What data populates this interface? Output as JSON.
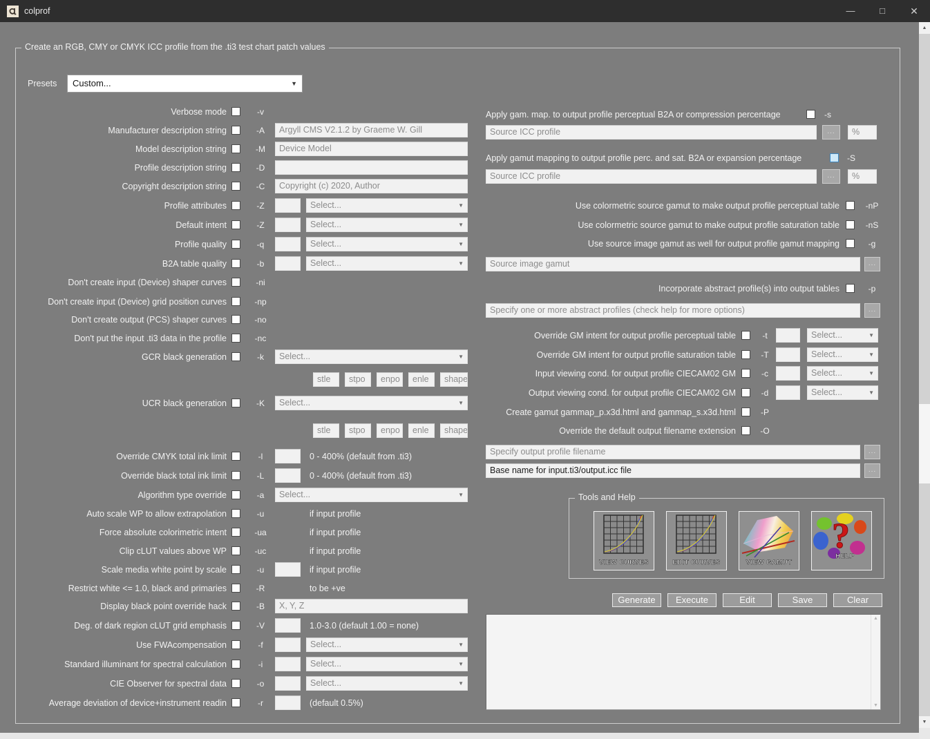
{
  "window": {
    "title": "colprof"
  },
  "icons": {
    "minimize": "—",
    "maximize": "□",
    "close": "✕",
    "dropdown": "▼",
    "browse": "...",
    "scroll_up": "▲",
    "scroll_down": "▼"
  },
  "group_title": "Create an RGB, CMY or CMYK ICC profile from the .ti3 test chart patch values",
  "presets": {
    "label": "Presets",
    "value": "Custom..."
  },
  "select_placeholder": "Select...",
  "left_rows": [
    {
      "label": "Verbose mode",
      "flag": "-v",
      "type": "plain"
    },
    {
      "label": "Manufacturer description string",
      "flag": "-A",
      "type": "text",
      "value": "Argyll CMS V2.1.2 by Graeme W. Gill"
    },
    {
      "label": "Model description string",
      "flag": "-M",
      "type": "text",
      "value": "Device Model"
    },
    {
      "label": "Profile description string",
      "flag": "-D",
      "type": "text",
      "value": ""
    },
    {
      "label": "Copyright description string",
      "flag": "-C",
      "type": "text",
      "value": "Copyright (c) 2020, Author"
    },
    {
      "label": "Profile attributes",
      "flag": "-Z",
      "type": "small_select"
    },
    {
      "label": "Default intent",
      "flag": "-Z",
      "type": "small_select"
    },
    {
      "label": "Profile quality",
      "flag": "-q",
      "type": "small_select"
    },
    {
      "label": "B2A table quality",
      "flag": "-b",
      "type": "small_select"
    },
    {
      "label": "Don't create input (Device) shaper curves",
      "flag": "-ni",
      "type": "plain"
    },
    {
      "label": "Don't create input (Device) grid position curves",
      "flag": "-np",
      "type": "plain"
    },
    {
      "label": "Don't create output (PCS) shaper curves",
      "flag": "-no",
      "type": "plain"
    },
    {
      "label": "Don't put the input .ti3 data in the profile",
      "flag": "-nc",
      "type": "plain"
    },
    {
      "label": "GCR black generation",
      "flag": "-k",
      "type": "select"
    },
    {
      "type": "subfields",
      "fields": [
        "stle",
        "stpo",
        "enpo",
        "enle",
        "shape"
      ]
    },
    {
      "label": "UCR black generation",
      "flag": "-K",
      "type": "select"
    },
    {
      "type": "subfields",
      "fields": [
        "stle",
        "stpo",
        "enpo",
        "enle",
        "shape"
      ]
    },
    {
      "label": "Override CMYK total ink limit",
      "flag": "-l",
      "type": "small_note",
      "note": "0 - 400% (default from .ti3)"
    },
    {
      "label": "Override black total ink limit",
      "flag": "-L",
      "type": "small_note",
      "note": "0 - 400% (default from .ti3)"
    },
    {
      "label": "Algorithm type override",
      "flag": "-a",
      "type": "select"
    },
    {
      "label": "Auto scale WP to allow extrapolation",
      "flag": "-u",
      "type": "note",
      "note": "if input profile"
    },
    {
      "label": "Force absolute colorimetric intent",
      "flag": "-ua",
      "type": "note",
      "note": "if input profile"
    },
    {
      "label": "Clip cLUT values above WP",
      "flag": "-uc",
      "type": "note",
      "note": "if input profile"
    },
    {
      "label": "Scale media white point by scale",
      "flag": "-u",
      "type": "small_note",
      "note": "if input profile"
    },
    {
      "label": "Restrict white <= 1.0, black and primaries",
      "flag": "-R",
      "type": "note",
      "note": "to be +ve"
    },
    {
      "label": "Display black point override hack",
      "flag": "-B",
      "type": "text",
      "value": "X, Y, Z"
    },
    {
      "label": "Deg. of dark region cLUT grid emphasis",
      "flag": "-V",
      "type": "small_note",
      "note": "1.0-3.0 (default 1.00 = none)"
    },
    {
      "label": "Use FWAcompensation",
      "flag": "-f",
      "type": "small_select"
    },
    {
      "label": "Standard illuminant for spectral calculation",
      "flag": "-i",
      "type": "small_select"
    },
    {
      "label": "CIE Observer for spectral data",
      "flag": "-o",
      "type": "small_select"
    },
    {
      "label": "Average deviation of device+instrument readin",
      "flag": "-r",
      "type": "small_note",
      "note": "(default 0.5%)"
    }
  ],
  "right_rows": {
    "apply_s": {
      "label": "Apply gam. map. to output profile perceptual B2A or compression percentage",
      "flag": "-s",
      "highlighted": false
    },
    "source_icc_1": {
      "placeholder": "Source ICC profile",
      "percent": "%"
    },
    "apply_S": {
      "label": "Apply gamut mapping to output profile perc. and sat. B2A or expansion percentage",
      "flag": "-S",
      "highlighted": true
    },
    "source_icc_2": {
      "placeholder": "Source ICC profile",
      "percent": "%"
    },
    "nP": {
      "label": "Use colormetric source gamut to make output profile perceptual table",
      "flag": "-nP",
      "highlighted": false
    },
    "nS": {
      "label": "Use colormetric source gamut to make output profile saturation table",
      "flag": "-nS",
      "highlighted": false
    },
    "g": {
      "label": "Use source image gamut as well for output profile gamut mapping",
      "flag": "-g",
      "highlighted": false
    },
    "source_image_gamut": {
      "placeholder": "Source image gamut"
    },
    "p": {
      "label": "Incorporate abstract profile(s) into output tables",
      "flag": "-p",
      "highlighted": false
    },
    "abstract_profiles": {
      "placeholder": "Specify one or more abstract profiles (check help for more options)"
    },
    "t": {
      "label": "Override GM intent for output profile perceptual table",
      "flag": "-t",
      "highlighted": false
    },
    "T": {
      "label": "Override GM intent for output profile saturation table",
      "flag": "-T",
      "highlighted": false
    },
    "c": {
      "label": "Input viewing cond. for output profile CIECAM02 GM",
      "flag": "-c",
      "highlighted": false
    },
    "d": {
      "label": "Output viewing cond. for output profile CIECAM02 GM",
      "flag": "-d",
      "highlighted": false
    },
    "P": {
      "label": "Create gamut gammap_p.x3d.html and gammap_s.x3d.html",
      "flag": "-P",
      "highlighted": false
    },
    "O": {
      "label": "Override the default output filename extension",
      "flag": "-O",
      "highlighted": false
    },
    "output_filename": {
      "placeholder": "Specify output profile filename"
    },
    "base_name": {
      "value": "Base name for input.ti3/output.icc file"
    }
  },
  "tools": {
    "title": "Tools and Help",
    "buttons": [
      "VIEW CURVES",
      "EDIT CURVES",
      "VIEW GAMUT",
      "HELP"
    ]
  },
  "actions": [
    "Generate",
    "Execute",
    "Edit",
    "Save",
    "Clear"
  ],
  "output_log": "",
  "colors": {
    "background": "#7d7d7d",
    "titlebar": "#2e2e2e",
    "field_bg": "#f1f1f1",
    "placeholder_text": "#8c8c8c",
    "checkbox_highlight": "#cfe9f8",
    "button_bg": "#9c9c9c"
  }
}
